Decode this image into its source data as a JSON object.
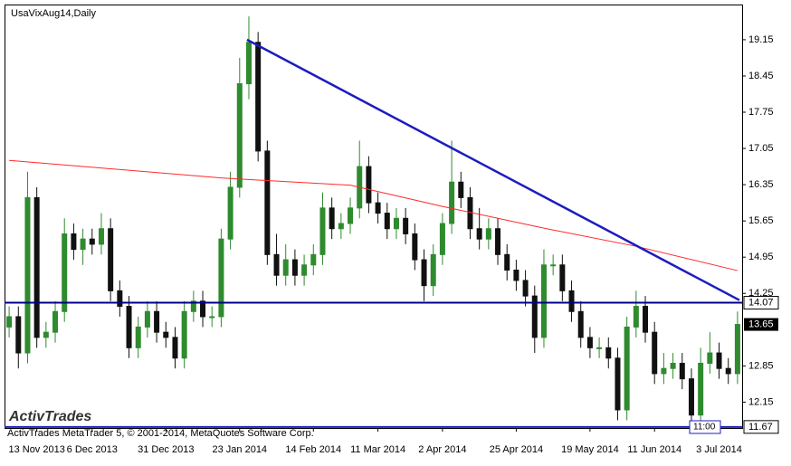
{
  "chart_data": {
    "type": "candlestick",
    "title": "UsaVixAug14,Daily",
    "footer": "ActivTrades MetaTrader 5, © 2001-2014, MetaQuotes Software Corp.",
    "logo": "ActivTrades",
    "time_marker": "11:00",
    "categories": [
      null,
      null,
      null,
      "13 Nov 2013",
      null,
      null,
      null,
      null,
      null,
      "6 Dec 2013",
      null,
      null,
      null,
      null,
      null,
      null,
      null,
      "31 Dec 2013",
      null,
      null,
      null,
      null,
      null,
      null,
      null,
      "23 Jan 2014",
      null,
      null,
      null,
      null,
      null,
      null,
      null,
      "14 Feb 2014",
      null,
      null,
      null,
      null,
      null,
      null,
      "11 Mar 2014",
      null,
      null,
      null,
      null,
      null,
      null,
      "2 Apr 2014",
      null,
      null,
      null,
      null,
      null,
      null,
      null,
      "25 Apr 2014",
      null,
      null,
      null,
      null,
      null,
      null,
      null,
      "19 May 2014",
      null,
      null,
      null,
      null,
      null,
      null,
      "11 Jun 2014",
      null,
      null,
      null,
      null,
      null,
      null,
      "3 Jul 2014",
      null,
      null
    ],
    "open": [
      13.6,
      13.8,
      13.1,
      16.1,
      13.4,
      13.5,
      13.9,
      15.4,
      15.1,
      15.3,
      15.2,
      15.5,
      14.3,
      14.0,
      13.2,
      13.6,
      13.9,
      13.5,
      13.4,
      13.0,
      13.9,
      14.1,
      13.8,
      13.8,
      15.3,
      16.3,
      18.3,
      19.1,
      17.0,
      15.0,
      14.6,
      14.9,
      14.6,
      14.8,
      15.0,
      15.9,
      15.5,
      15.6,
      15.9,
      16.7,
      16.0,
      15.8,
      15.5,
      15.7,
      15.4,
      14.9,
      14.4,
      15.0,
      15.6,
      16.4,
      16.1,
      15.5,
      15.3,
      15.5,
      15.0,
      14.7,
      14.5,
      14.2,
      13.4,
      14.8,
      14.8,
      14.3,
      13.9,
      13.4,
      13.2,
      13.2,
      13.0,
      12.0,
      13.6,
      14.0,
      13.5,
      12.7,
      12.8,
      12.9,
      12.6,
      11.9,
      12.9,
      13.1,
      12.8,
      12.7
    ],
    "high": [
      14.0,
      14.0,
      16.6,
      16.3,
      13.7,
      14.1,
      15.7,
      15.6,
      15.5,
      15.5,
      15.8,
      15.7,
      14.5,
      14.2,
      13.8,
      14.1,
      14.1,
      13.7,
      13.6,
      14.1,
      14.3,
      14.3,
      14.0,
      15.5,
      16.6,
      18.8,
      19.6,
      19.3,
      17.2,
      15.4,
      15.2,
      15.1,
      15.0,
      15.2,
      16.2,
      16.1,
      15.8,
      16.1,
      17.2,
      16.9,
      16.2,
      16.0,
      15.9,
      15.9,
      15.6,
      15.1,
      15.2,
      15.8,
      17.2,
      16.6,
      16.3,
      15.9,
      15.7,
      15.7,
      15.2,
      14.9,
      14.7,
      14.4,
      15.1,
      15.0,
      15.0,
      14.5,
      14.1,
      13.6,
      13.4,
      13.4,
      13.2,
      13.8,
      14.3,
      14.2,
      13.7,
      13.1,
      13.1,
      13.1,
      12.8,
      13.2,
      13.5,
      13.3,
      13.0,
      13.9
    ],
    "low": [
      13.4,
      12.8,
      12.9,
      13.2,
      13.2,
      13.3,
      13.7,
      14.9,
      14.8,
      15.0,
      15.0,
      14.1,
      13.8,
      13.0,
      13.0,
      13.4,
      13.3,
      13.2,
      12.8,
      12.8,
      13.7,
      13.6,
      13.6,
      13.6,
      15.1,
      16.1,
      18.0,
      16.8,
      14.8,
      14.4,
      14.4,
      14.4,
      14.4,
      14.6,
      14.8,
      15.3,
      15.3,
      15.4,
      15.7,
      15.8,
      15.6,
      15.3,
      15.3,
      15.2,
      14.7,
      14.1,
      14.2,
      14.8,
      15.4,
      15.9,
      15.3,
      15.1,
      15.1,
      14.8,
      14.5,
      14.3,
      14.0,
      13.1,
      13.2,
      14.6,
      14.1,
      13.7,
      13.2,
      13.0,
      13.0,
      12.8,
      11.8,
      11.8,
      13.4,
      13.3,
      12.5,
      12.5,
      12.6,
      12.4,
      11.7,
      11.7,
      12.7,
      12.6,
      12.5,
      12.5
    ],
    "close": [
      13.8,
      13.1,
      16.1,
      13.4,
      13.5,
      13.9,
      15.4,
      15.1,
      15.3,
      15.2,
      15.5,
      14.3,
      14.0,
      13.2,
      13.6,
      13.9,
      13.5,
      13.4,
      13.0,
      13.9,
      14.1,
      13.8,
      13.8,
      15.3,
      16.3,
      18.3,
      19.1,
      17.0,
      15.0,
      14.6,
      14.9,
      14.6,
      14.8,
      15.0,
      15.9,
      15.5,
      15.6,
      15.9,
      16.7,
      16.0,
      15.8,
      15.5,
      15.7,
      15.4,
      14.9,
      14.4,
      15.0,
      15.6,
      16.4,
      16.1,
      15.5,
      15.3,
      15.5,
      15.0,
      14.7,
      14.5,
      14.2,
      13.4,
      14.8,
      14.8,
      14.3,
      13.9,
      13.4,
      13.2,
      13.2,
      13.0,
      12.0,
      13.6,
      14.0,
      13.5,
      12.7,
      12.8,
      12.9,
      12.6,
      11.9,
      12.9,
      13.1,
      12.8,
      12.7,
      13.65
    ],
    "up_color": "#2e8b2e",
    "down_color": "#111111",
    "ylim": [
      11.65,
      19.83
    ],
    "yticks": [
      12.15,
      12.85,
      14.25,
      14.95,
      15.65,
      16.35,
      17.05,
      17.75,
      18.45,
      19.15
    ],
    "lines": [
      {
        "color": "#ff2a2a",
        "x": [
          0,
          23,
          37,
          47,
          58,
          68,
          79
        ],
        "values": [
          16.82,
          16.48,
          16.34,
          15.93,
          15.51,
          15.16,
          14.69
        ]
      },
      {
        "color": "#1c1cbf",
        "x": [
          25.8,
          79.2
        ],
        "values": [
          19.15,
          14.12
        ]
      }
    ],
    "hlines": [
      {
        "value": 14.07,
        "color": "#00008b"
      },
      {
        "value": 11.67,
        "color": "#1c1cbf"
      }
    ]
  }
}
